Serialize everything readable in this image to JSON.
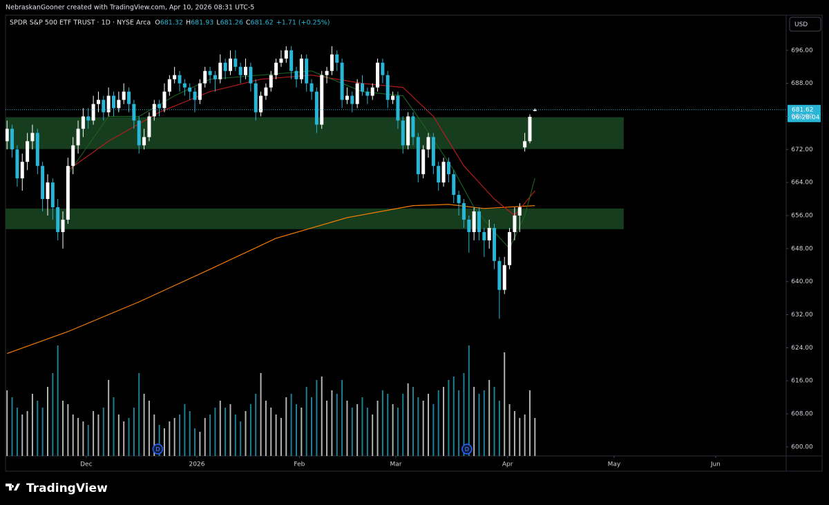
{
  "chart_data": {
    "type": "candlestick",
    "attribution": "NebraskanGooner created with TradingView.com, Apr 10, 2026 08:31 UTC-5",
    "symbol": "SPDR S&P 500 ETF TRUST · 1D · NYSE Arca",
    "ohlc_letters": [
      "O",
      "H",
      "L",
      "C"
    ],
    "change_label": "+1.71 (+0.25%)",
    "currency": "USD",
    "countdown": "06:28:04",
    "brand": "TradingView",
    "up_color": "#ffffff",
    "down_color": "#29b6d6",
    "ohlc": [
      [
        674,
        679,
        672,
        677
      ],
      [
        677,
        678,
        670,
        672
      ],
      [
        672,
        673,
        663,
        665
      ],
      [
        665,
        671,
        662,
        669
      ],
      [
        669,
        676,
        667,
        674
      ],
      [
        674,
        678,
        672,
        676
      ],
      [
        676,
        677,
        666,
        668
      ],
      [
        668,
        669,
        657,
        660
      ],
      [
        660,
        666,
        656,
        664
      ],
      [
        664,
        665,
        655,
        658
      ],
      [
        658,
        660,
        650,
        652
      ],
      [
        652,
        657,
        648,
        655
      ],
      [
        655,
        670,
        654,
        668
      ],
      [
        668,
        675,
        666,
        673
      ],
      [
        673,
        679,
        671,
        677
      ],
      [
        677,
        682,
        675,
        680
      ],
      [
        680,
        682,
        677,
        679
      ],
      [
        679,
        685,
        678,
        683
      ],
      [
        683,
        686,
        681,
        684
      ],
      [
        684,
        685,
        679,
        681
      ],
      [
        681,
        687,
        680,
        685
      ],
      [
        685,
        686,
        680,
        682
      ],
      [
        682,
        686,
        681,
        684
      ],
      [
        684,
        688,
        683,
        686
      ],
      [
        686,
        687,
        681,
        683
      ],
      [
        683,
        684,
        677,
        679
      ],
      [
        679,
        680,
        671,
        673
      ],
      [
        673,
        677,
        672,
        675
      ],
      [
        675,
        681,
        674,
        680
      ],
      [
        680,
        684,
        679,
        683
      ],
      [
        683,
        684,
        680,
        682
      ],
      [
        682,
        688,
        681,
        686
      ],
      [
        686,
        690,
        685,
        689
      ],
      [
        689,
        692,
        688,
        690
      ],
      [
        690,
        691,
        686,
        688
      ],
      [
        688,
        689,
        685,
        687
      ],
      [
        687,
        688,
        684,
        686
      ],
      [
        686,
        687,
        681,
        684
      ],
      [
        684,
        689,
        683,
        688
      ],
      [
        688,
        692,
        687,
        691
      ],
      [
        691,
        692,
        688,
        690
      ],
      [
        690,
        691,
        686,
        689
      ],
      [
        689,
        695,
        688,
        693
      ],
      [
        693,
        694,
        689,
        691
      ],
      [
        691,
        696,
        690,
        694
      ],
      [
        694,
        696,
        691,
        692
      ],
      [
        692,
        693,
        688,
        690
      ],
      [
        690,
        694,
        689,
        692
      ],
      [
        692,
        693,
        686,
        688
      ],
      [
        688,
        689,
        679,
        681
      ],
      [
        681,
        686,
        680,
        685
      ],
      [
        685,
        688,
        684,
        687
      ],
      [
        687,
        691,
        686,
        690
      ],
      [
        690,
        694,
        689,
        693
      ],
      [
        693,
        696,
        692,
        694
      ],
      [
        694,
        697,
        693,
        696
      ],
      [
        696,
        697,
        689,
        691
      ],
      [
        691,
        692,
        687,
        689
      ],
      [
        689,
        695,
        688,
        694
      ],
      [
        694,
        695,
        686,
        688
      ],
      [
        688,
        689,
        684,
        686
      ],
      [
        686,
        687,
        676,
        678
      ],
      [
        678,
        691,
        677,
        690
      ],
      [
        690,
        692,
        688,
        691
      ],
      [
        691,
        697,
        690,
        695
      ],
      [
        695,
        696,
        691,
        693
      ],
      [
        693,
        694,
        682,
        684
      ],
      [
        684,
        687,
        683,
        685
      ],
      [
        685,
        686,
        681,
        683
      ],
      [
        683,
        689,
        682,
        688
      ],
      [
        688,
        690,
        685,
        686
      ],
      [
        686,
        687,
        683,
        685
      ],
      [
        685,
        688,
        684,
        687
      ],
      [
        687,
        694,
        686,
        693
      ],
      [
        693,
        694,
        688,
        690
      ],
      [
        690,
        691,
        682,
        684
      ],
      [
        684,
        686,
        683,
        685
      ],
      [
        685,
        686,
        677,
        679
      ],
      [
        679,
        680,
        671,
        673
      ],
      [
        673,
        681,
        672,
        680
      ],
      [
        680,
        681,
        673,
        675
      ],
      [
        675,
        676,
        664,
        666
      ],
      [
        666,
        673,
        665,
        672
      ],
      [
        672,
        676,
        670,
        675
      ],
      [
        675,
        676,
        666,
        668
      ],
      [
        668,
        669,
        662,
        664
      ],
      [
        664,
        670,
        663,
        669
      ],
      [
        669,
        670,
        664,
        666
      ],
      [
        666,
        667,
        659,
        661
      ],
      [
        661,
        662,
        656,
        659
      ],
      [
        659,
        660,
        653,
        655
      ],
      [
        655,
        656,
        647,
        652
      ],
      [
        652,
        658,
        650,
        657
      ],
      [
        657,
        658,
        650,
        652
      ],
      [
        652,
        653,
        646,
        650
      ],
      [
        650,
        655,
        648,
        653
      ],
      [
        653,
        654,
        643,
        645
      ],
      [
        645,
        646,
        631,
        638
      ],
      [
        638,
        646,
        637,
        644
      ],
      [
        644,
        653,
        643,
        652
      ],
      [
        652,
        658,
        650,
        656
      ],
      [
        656,
        659,
        652,
        658
      ],
      [
        672.5,
        676,
        671.5,
        674
      ],
      [
        674,
        680.5,
        673.5,
        679.91
      ],
      [
        681.32,
        681.93,
        681.26,
        681.62
      ]
    ],
    "volume": [
      95,
      85,
      70,
      60,
      65,
      90,
      80,
      70,
      100,
      120,
      160,
      80,
      75,
      60,
      55,
      50,
      45,
      65,
      60,
      70,
      110,
      85,
      60,
      50,
      55,
      70,
      120,
      90,
      80,
      60,
      45,
      40,
      50,
      55,
      60,
      75,
      65,
      40,
      35,
      55,
      60,
      70,
      80,
      70,
      75,
      60,
      50,
      65,
      75,
      90,
      120,
      80,
      70,
      60,
      55,
      85,
      90,
      75,
      70,
      100,
      85,
      110,
      115,
      80,
      95,
      90,
      110,
      80,
      70,
      75,
      85,
      70,
      60,
      80,
      95,
      90,
      75,
      70,
      90,
      105,
      100,
      85,
      80,
      90,
      75,
      95,
      100,
      110,
      115,
      95,
      120,
      160,
      100,
      90,
      95,
      110,
      100,
      80,
      150,
      75,
      65,
      55,
      60,
      95,
      55
    ],
    "volume_lim": [
      0,
      200
    ],
    "series": [
      {
        "color": "#f57c00",
        "x": [
          0,
          12,
          26,
          40,
          53,
          67,
          80,
          87,
          94,
          104
        ],
        "values": [
          622.6,
          627.9,
          635.1,
          643,
          650.5,
          655.5,
          658.4,
          658.7,
          657.7,
          658.4
        ]
      },
      {
        "color": "#b71c1c",
        "x": [
          12,
          20,
          30,
          40,
          50,
          60,
          70,
          78,
          84,
          90,
          96,
          100,
          104
        ],
        "values": [
          667,
          674,
          681,
          686,
          689,
          690,
          688,
          687,
          680,
          668,
          660,
          656,
          662
        ]
      },
      {
        "color": "#1b5e20",
        "x": [
          12,
          20,
          26,
          33,
          40,
          50,
          60,
          70,
          78,
          82,
          88,
          92,
          96,
          99,
          102,
          104
        ],
        "values": [
          666,
          680,
          680,
          685,
          689,
          690,
          691,
          686,
          685,
          678,
          667,
          658,
          652,
          648,
          656,
          665
        ]
      }
    ],
    "zones": [
      {
        "from": 672.1,
        "to": 679.8,
        "x_end": 121.5,
        "color": "#173d1f"
      },
      {
        "from": 652.7,
        "to": 657.7,
        "x_end": 121.5,
        "color": "#173d1f"
      }
    ],
    "dividends": [
      {
        "x": 29.7,
        "label": "D"
      },
      {
        "x": 90.6,
        "label": "D"
      }
    ],
    "xlim": [
      -0.3,
      153.5
    ],
    "xticks": [
      {
        "value": 15.6,
        "label": "Dec"
      },
      {
        "value": 37.4,
        "label": "2026"
      },
      {
        "value": 57.6,
        "label": "Feb"
      },
      {
        "value": 76.6,
        "label": "Mar"
      },
      {
        "value": 98.6,
        "label": "Apr"
      },
      {
        "value": 119.6,
        "label": "May"
      },
      {
        "value": 139.6,
        "label": "Jun"
      }
    ],
    "ylim": [
      597.8,
      704.5
    ],
    "yticks": [
      {
        "value": 600,
        "label": "600.00"
      },
      {
        "value": 608,
        "label": "608.00"
      },
      {
        "value": 616,
        "label": "616.00"
      },
      {
        "value": 624,
        "label": "624.00"
      },
      {
        "value": 632,
        "label": "632.00"
      },
      {
        "value": 640,
        "label": "640.00"
      },
      {
        "value": 648,
        "label": "648.00"
      },
      {
        "value": 656,
        "label": "656.00"
      },
      {
        "value": 664,
        "label": "664.00"
      },
      {
        "value": 672,
        "label": "672.00"
      },
      {
        "value": 680,
        "label": "680.00"
      },
      {
        "value": 688,
        "label": "688.00"
      },
      {
        "value": 696,
        "label": "696.00"
      }
    ],
    "grid": false
  }
}
